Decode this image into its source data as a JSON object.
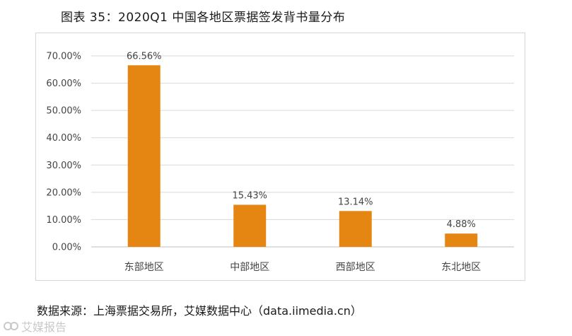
{
  "title": "图表 35：2020Q1 中国各地区票据签发背书量分布",
  "source": "数据来源：上海票据交易所，艾媒数据中心（data.iimedia.cn）",
  "watermark": "艾媒报告",
  "colors": {
    "bar": "#E68612",
    "grid": "#d9d9d9",
    "axis": "#bfbfbf"
  },
  "chart_data": {
    "type": "bar",
    "categories": [
      "东部地区",
      "中部地区",
      "西部地区",
      "东北地区"
    ],
    "values": [
      66.56,
      15.43,
      13.14,
      4.88
    ],
    "data_labels": [
      "66.56%",
      "15.43%",
      "13.14%",
      "4.88%"
    ],
    "ylim": [
      0,
      70
    ],
    "yticks": [
      0,
      10,
      20,
      30,
      40,
      50,
      60,
      70
    ],
    "ytick_labels": [
      "0.00%",
      "10.00%",
      "20.00%",
      "30.00%",
      "40.00%",
      "50.00%",
      "60.00%",
      "70.00%"
    ],
    "grid": true,
    "legend": "none",
    "xlabel": "",
    "ylabel": ""
  }
}
